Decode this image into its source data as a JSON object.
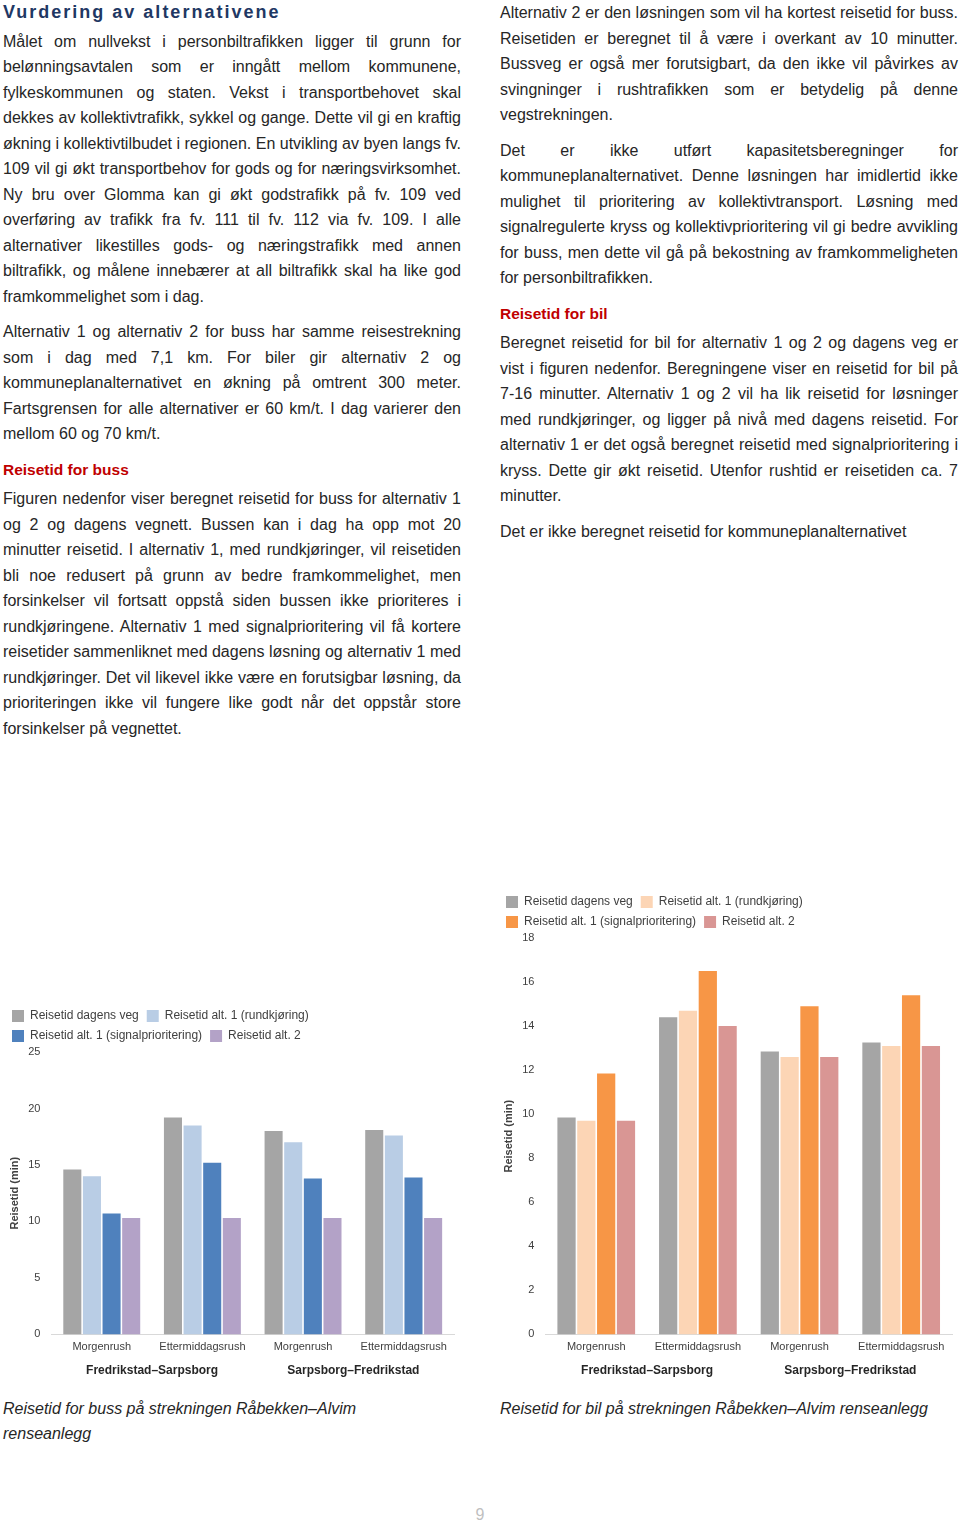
{
  "document": {
    "heading": "Vurdering av alternativene",
    "left_column": [
      "Målet om nullvekst i personbiltrafikken ligger til grunn for belønningsavtalen som er inngått mellom kommunene, fylkeskommunen og staten. Vekst i transportbehovet skal dekkes av kollektivtrafikk, sykkel og gange. Dette vil gi en kraftig økning i kollektivtilbudet i regionen. En utvikling av byen langs fv. 109 vil gi økt transportbehov for gods og for næringsvirksomhet. Ny bru over Glomma kan gi økt godstrafikk på fv. 109 ved overføring av trafikk fra fv. 111 til fv. 112 via fv. 109. I alle alternativer likestilles gods- og næringstrafikk med annen biltrafikk, og målene innebærer at all biltrafikk skal ha like god framkommelighet som i dag.",
      "Alternativ 1 og alternativ 2 for buss har samme reisestrekning som i dag med 7,1 km. For biler gir alternativ 2 og kommuneplanalternativet en økning på omtrent 300 meter. Fartsgrensen for alle alternativer er 60 km/t. I dag varierer den mellom 60 og 70 km/t.",
      {
        "subheading": "Reisetid for buss"
      },
      "Figuren nedenfor viser beregnet reisetid for buss for alternativ 1 og 2 og dagens vegnett. Bussen kan i dag ha opp mot 20 minutter reisetid. I alternativ 1, med rundkjøringer, vil reisetiden bli noe redusert på grunn av bedre framkommelighet, men forsinkelser vil fortsatt oppstå siden bussen ikke prioriteres i rundkjøringene. Alternativ 1 med signalprioritering vil få kortere reisetider sammenliknet med dagens løsning og alternativ 1 med rundkjøringer. Det vil likevel ikke være en forutsigbar løsning, da prioriteringen ikke vil fungere like godt når det oppstår store forsinkelser på vegnettet."
    ],
    "right_column": [
      "Alternativ 2 er den løsningen som vil ha kortest reisetid for buss. Reisetiden er beregnet til å være i overkant av 10 minutter. Bussveg er også mer forutsigbart, da den ikke vil påvirkes av svingninger i rushtrafikken som er betydelig på denne vegstrekningen.",
      "Det er ikke utført kapasitetsberegninger for kommuneplanalternativet. Denne løsningen har imidlertid ikke mulighet til prioritering av kollektivtransport. Løsning med signalregulerte kryss og kollektivprioritering vil gi bedre avvikling for buss, men dette vil gå på bekostning av framkommeligheten for personbiltrafikken.",
      {
        "subheading": "Reisetid for bil"
      },
      "Beregnet reisetid for bil for alternativ 1 og 2 og dagens veg er vist i figuren nedenfor. Beregningene viser en reisetid for bil på 7-16 minutter. Alternativ 1 og 2 vil ha lik reisetid for løsninger med rundkjøringer, og ligger på nivå med dagens reisetid. For alternativ 1 er det også beregnet reisetid med signalprioritering i kryss. Dette gir økt reisetid. Utenfor rushtid er reisetiden ca. 7 minutter.",
      "Det er ikke beregnet reisetid for kommuneplanalternativet"
    ],
    "page_number": "9"
  },
  "chart_data": [
    {
      "type": "bar",
      "caption": "Reisetid for buss på strekningen Råbekken–Alvim renseanlegg",
      "y_label": "Reisetid (min)",
      "categories": [
        "Morgenrush",
        "Ettermiddagsrush",
        "Morgenrush",
        "Ettermiddagsrush"
      ],
      "groups": [
        "Fredrikstad–Sarpsborg",
        "Sarpsborg–Fredrikstad"
      ],
      "series": [
        {
          "name": "Reisetid dagens veg",
          "color": "#a5a5a5",
          "values": [
            14.6,
            19.2,
            18.0,
            18.1
          ]
        },
        {
          "name": "Reisetid alt. 1 (rundkjøring)",
          "color": "#b9cde5",
          "values": [
            14.0,
            18.5,
            17.0,
            17.6
          ]
        },
        {
          "name": "Reisetid alt. 1 (signalprioritering)",
          "color": "#4f81bd",
          "values": [
            10.7,
            15.2,
            13.8,
            13.9
          ]
        },
        {
          "name": "Reisetid alt. 2",
          "color": "#b3a2c7",
          "values": [
            10.3,
            10.3,
            10.3,
            10.3
          ]
        }
      ],
      "ylim": [
        0,
        25
      ],
      "yticks": [
        0,
        5,
        10,
        15,
        20,
        25
      ],
      "grid": false,
      "legend": "top"
    },
    {
      "type": "bar",
      "caption": "Reisetid for bil på strekningen Råbekken–Alvim renseanlegg",
      "y_label": "Reisetid (min)",
      "categories": [
        "Morgenrush",
        "Ettermiddagsrush",
        "Morgenrush",
        "Ettermiddagsrush"
      ],
      "groups": [
        "Fredrikstad–Sarpsborg",
        "Sarpsborg–Fredrikstad"
      ],
      "series": [
        {
          "name": "Reisetid dagens veg",
          "color": "#a5a5a5",
          "values": [
            9.85,
            14.4,
            12.85,
            13.25
          ]
        },
        {
          "name": "Reisetid alt. 1 (rundkjøring)",
          "color": "#fcd5b5",
          "values": [
            9.7,
            14.7,
            12.6,
            13.1
          ]
        },
        {
          "name": "Reisetid alt. 1 (signalprioritering)",
          "color": "#f79646",
          "values": [
            11.85,
            16.5,
            14.9,
            15.4
          ]
        },
        {
          "name": "Reisetid alt. 2",
          "color": "#d99694",
          "values": [
            9.7,
            14.0,
            12.6,
            13.1
          ]
        }
      ],
      "ylim": [
        0,
        18
      ],
      "yticks": [
        0,
        2,
        4,
        6,
        8,
        10,
        12,
        14,
        16,
        18
      ],
      "grid": false,
      "legend": "top"
    }
  ]
}
